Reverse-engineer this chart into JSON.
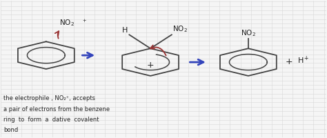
{
  "background_color": "#f5f5f5",
  "grid_color": "#d8d8d8",
  "line_color": "#444444",
  "arrow_color": "#3344bb",
  "curved_arrow_color": "#993333",
  "text_color": "#222222",
  "annotation_lines": [
    "the electrophile , NO₂⁺, accepts",
    "a pair of electrons from the benzene",
    "ring  to  form  a  dative  covalent",
    "bond"
  ],
  "b1x": 0.14,
  "b1y": 0.6,
  "b2x": 0.46,
  "b2y": 0.55,
  "b3x": 0.76,
  "b3y": 0.55,
  "r1": 0.1,
  "r2": 0.1,
  "r3": 0.1
}
